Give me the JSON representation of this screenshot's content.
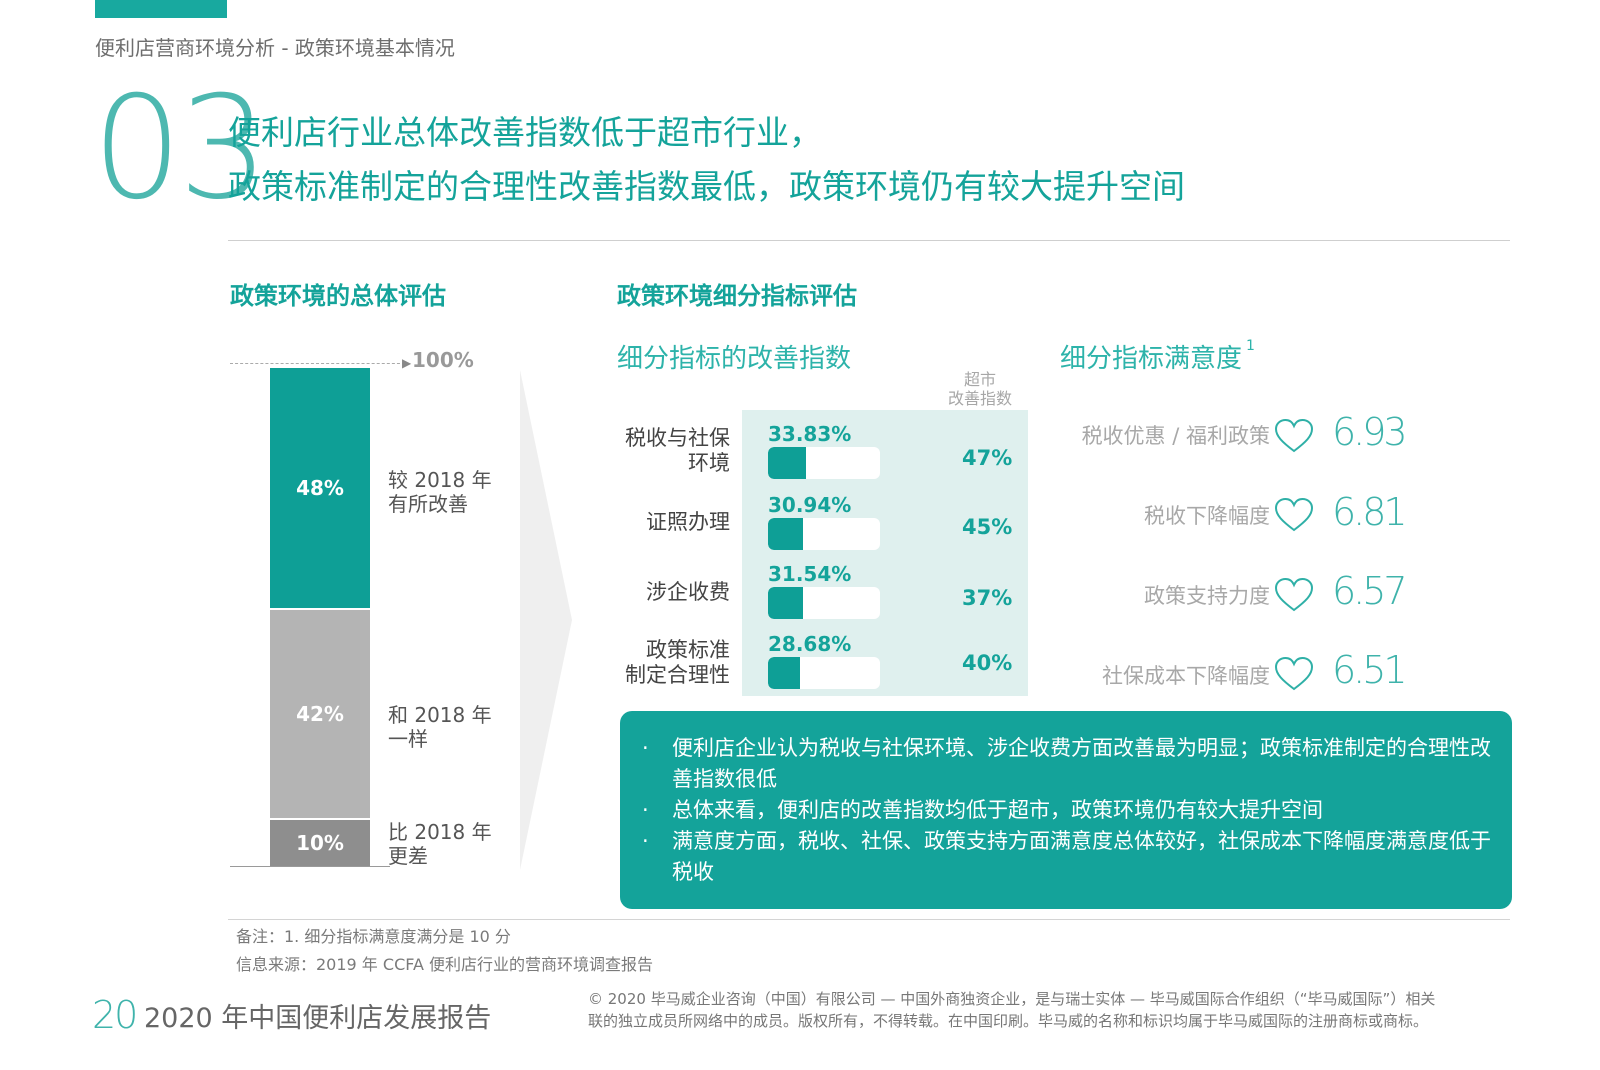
{
  "header": {
    "breadcrumb": "便利店营商环境分析 - 政策环境基本情况",
    "section_number": "03",
    "headline_line1": "便利店行业总体改善指数低于超市行业，",
    "headline_line2": "政策标准制定的合理性改善指数最低，政策环境仍有较大提升空间"
  },
  "overall": {
    "title": "政策环境的总体评估",
    "top_label": "100%",
    "segments": [
      {
        "value_label": "48%",
        "label_line1": "较 2018 年",
        "label_line2": "有所改善"
      },
      {
        "value_label": "42%",
        "label_line1": "和 2018 年",
        "label_line2": "一样"
      },
      {
        "value_label": "10%",
        "label_line1": "比 2018 年",
        "label_line2": "更差"
      }
    ]
  },
  "detail": {
    "title": "政策环境细分指标评估",
    "improvement_subtitle": "细分指标的改善指数",
    "supermarket_header_line1": "超市",
    "supermarket_header_line2": "改善指数",
    "satisfaction_subtitle": "细分指标满意度",
    "satisfaction_footnote_mark": "1",
    "rows": [
      {
        "label_line1": "税收与社保",
        "label_line2": "环境",
        "value_label": "33.83%",
        "value": 33.83,
        "supermarket": "47%"
      },
      {
        "label_line1": "证照办理",
        "label_line2": "",
        "value_label": "30.94%",
        "value": 30.94,
        "supermarket": "45%"
      },
      {
        "label_line1": "涉企收费",
        "label_line2": "",
        "value_label": "31.54%",
        "value": 31.54,
        "supermarket": "37%"
      },
      {
        "label_line1": "政策标准",
        "label_line2": "制定合理性",
        "value_label": "28.68%",
        "value": 28.68,
        "supermarket": "40%"
      }
    ],
    "satisfaction": [
      {
        "label": "税收优惠 / 福利政策",
        "score": "6.93"
      },
      {
        "label": "税收下降幅度",
        "score": "6.81"
      },
      {
        "label": "政策支持力度",
        "score": "6.57"
      },
      {
        "label": "社保成本下降幅度",
        "score": "6.51"
      }
    ]
  },
  "summary": {
    "bullet_mark": "·",
    "items": [
      "便利店企业认为税收与社保环境、涉企收费方面改善最为明显；政策标准制定的合理性改善指数很低",
      "总体来看，便利店的改善指数均低于超市，政策环境仍有较大提升空间",
      "满意度方面，税收、社保、政策支持方面满意度总体较好，社保成本下降幅度满意度低于税收"
    ]
  },
  "notes": {
    "note1": "备注：1. 细分指标满意度满分是 10 分",
    "note2": "信息来源：2019 年 CCFA 便利店行业的营商环境调查报告"
  },
  "footer": {
    "page_number": "20",
    "report_title": "2020 年中国便利店发展报告",
    "copyright_line1": "© 2020 毕马威企业咨询（中国）有限公司 — 中国外商独资企业，是与瑞士实体 — 毕马威国际合作组织（“毕马威国际”）相关",
    "copyright_line2": "联的独立成员所网络中的成员。版权所有，不得转载。在中国印刷。毕马威的名称和标识均属于毕马威国际的注册商标或商标。"
  },
  "colors": {
    "accent": "#14a39a",
    "bar_dark_teal": "#0e9f96",
    "bar_grey": "#b4b4b4",
    "bar_dark_grey": "#8e8e8e",
    "panel_bg": "#dff0ee"
  }
}
